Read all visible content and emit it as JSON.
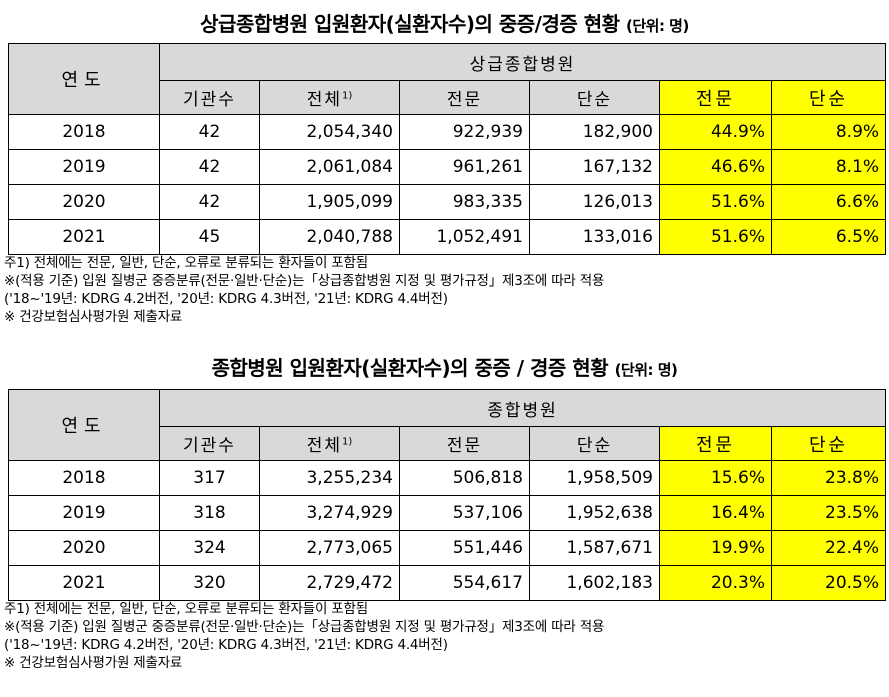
{
  "tables": [
    {
      "title": "상급종합병원 입원환자(실환자수)의 중증/경증 현황",
      "unit": "(단위: 명)",
      "year_header": "연도",
      "group_header": "상급종합병원",
      "columns": [
        "기관수",
        "전체",
        "전문",
        "단순",
        "전문",
        "단순"
      ],
      "total_sup": "1)",
      "rows": [
        {
          "year": "2018",
          "inst": "42",
          "total": "2,054,340",
          "spec": "922,939",
          "simple": "182,900",
          "spec_pct": "44.9%",
          "simple_pct": "8.9%"
        },
        {
          "year": "2019",
          "inst": "42",
          "total": "2,061,084",
          "spec": "961,261",
          "simple": "167,132",
          "spec_pct": "46.6%",
          "simple_pct": "8.1%"
        },
        {
          "year": "2020",
          "inst": "42",
          "total": "1,905,099",
          "spec": "983,335",
          "simple": "126,013",
          "spec_pct": "51.6%",
          "simple_pct": "6.6%"
        },
        {
          "year": "2021",
          "inst": "45",
          "total": "2,040,788",
          "spec": "1,052,491",
          "simple": "133,016",
          "spec_pct": "51.6%",
          "simple_pct": "6.5%"
        }
      ],
      "notes": [
        "주1) 전체에는 전문, 일반, 단순, 오류로 분류되는 환자들이 포함됨",
        "※(적용 기준) 입원 질병군 중증분류(전문·일반·단순)는「상급종합병원 지정 및 평가규정」제3조에 따라 적용",
        "('18~'19년: KDRG 4.2버전, '20년: KDRG 4.3버전, '21년: KDRG 4.4버전)",
        "※ 건강보험심사평가원 제출자료"
      ]
    },
    {
      "title": "종합병원 입원환자(실환자수)의 중증 / 경증 현황",
      "unit": "(단위: 명)",
      "year_header": "연도",
      "group_header": "종합병원",
      "columns": [
        "기관수",
        "전체",
        "전문",
        "단순",
        "전문",
        "단순"
      ],
      "total_sup": "1)",
      "rows": [
        {
          "year": "2018",
          "inst": "317",
          "total": "3,255,234",
          "spec": "506,818",
          "simple": "1,958,509",
          "spec_pct": "15.6%",
          "simple_pct": "23.8%"
        },
        {
          "year": "2019",
          "inst": "318",
          "total": "3,274,929",
          "spec": "537,106",
          "simple": "1,952,638",
          "spec_pct": "16.4%",
          "simple_pct": "23.5%"
        },
        {
          "year": "2020",
          "inst": "324",
          "total": "2,773,065",
          "spec": "551,446",
          "simple": "1,587,671",
          "spec_pct": "19.9%",
          "simple_pct": "22.4%"
        },
        {
          "year": "2021",
          "inst": "320",
          "total": "2,729,472",
          "spec": "554,617",
          "simple": "1,602,183",
          "spec_pct": "20.3%",
          "simple_pct": "20.5%"
        }
      ],
      "notes": [
        "주1) 전체에는 전문, 일반, 단순, 오류로 분류되는 환자들이 포함됨",
        "※(적용 기준) 입원 질병군 중증분류(전문·일반·단순)는「상급종합병원 지정 및 평가규정」제3조에 따라 적용",
        "('18~'19년: KDRG 4.2버전, '20년: KDRG 4.3버전, '21년: KDRG 4.4버전)",
        "※ 건강보험심사평가원 제출자료"
      ]
    }
  ],
  "colors": {
    "header_bg": "#d9d9d9",
    "highlight": "#ffff00"
  }
}
